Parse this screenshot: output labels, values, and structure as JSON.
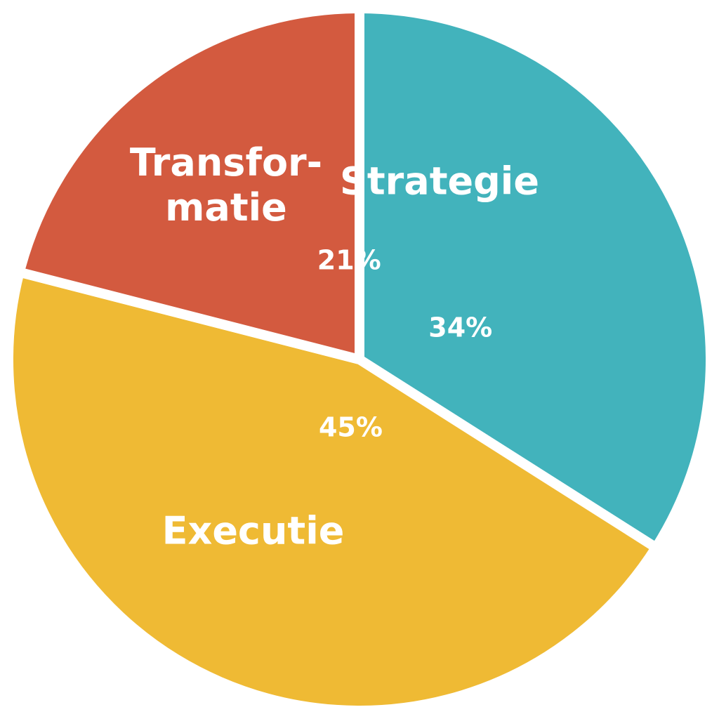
{
  "chart_data": {
    "type": "pie",
    "title": "",
    "legend": "none",
    "slices": [
      {
        "category": "Strategie",
        "label_lines": [
          "Strategie"
        ],
        "value": 34,
        "value_label": "34%",
        "color": "#42B3BC"
      },
      {
        "category": "Executie",
        "label_lines": [
          "Executie"
        ],
        "value": 45,
        "value_label": "45%",
        "color": "#EFBA34"
      },
      {
        "category": "Transformatie",
        "label_lines": [
          "Transfor-",
          "matie"
        ],
        "value": 21,
        "value_label": "21%",
        "color": "#D35A3F"
      }
    ]
  }
}
